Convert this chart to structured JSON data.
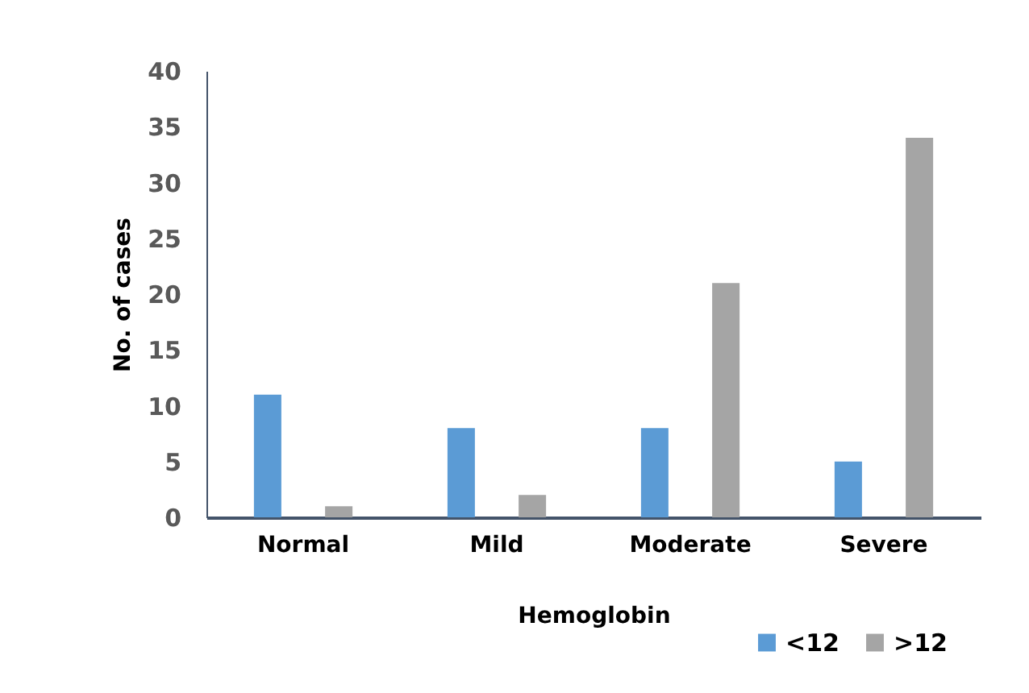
{
  "chart_data": {
    "type": "bar",
    "xlabel": "Hemoglobin",
    "ylabel": "No. of cases",
    "categories": [
      "Normal",
      "Mild",
      "Moderate",
      "Severe"
    ],
    "series": [
      {
        "name": "<12",
        "color": "#5b9bd5",
        "values": [
          11,
          8,
          8,
          5
        ]
      },
      {
        "name": ">12",
        "color": "#a5a5a5",
        "values": [
          1,
          2,
          21,
          34
        ]
      }
    ],
    "ylim": [
      0,
      40
    ],
    "yticks": [
      0,
      5,
      10,
      15,
      20,
      25,
      30,
      35,
      40
    ],
    "grid": false,
    "legend": "bottom right"
  }
}
